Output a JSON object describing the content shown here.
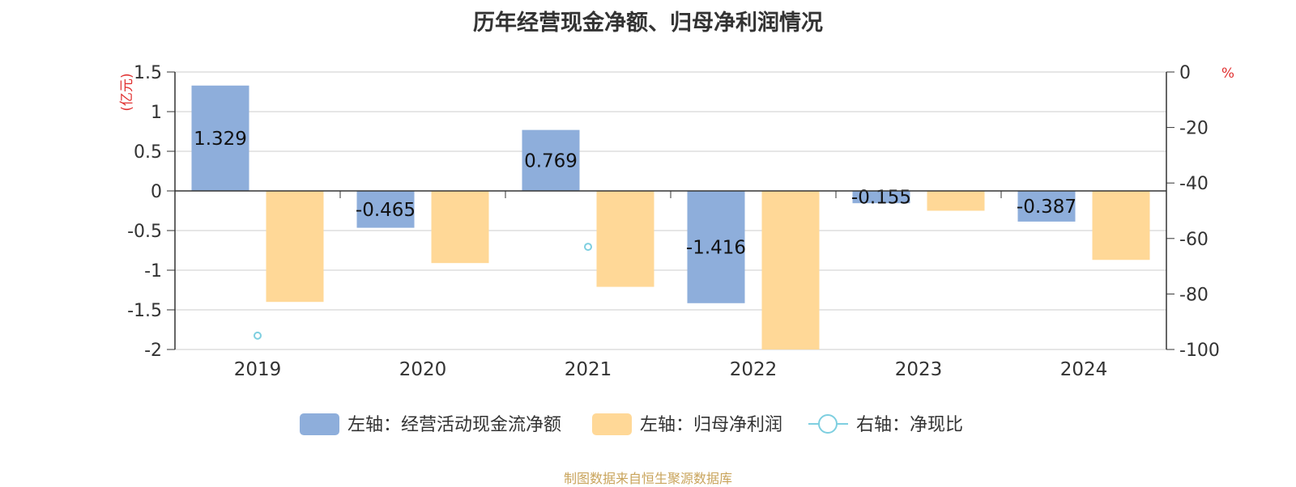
{
  "chart_data": {
    "type": "bar",
    "title": "历年经营现金净额、归母净利润情况",
    "categories": [
      "2019",
      "2020",
      "2021",
      "2022",
      "2023",
      "2024"
    ],
    "left_axis": {
      "unit_label": "(亿元)",
      "ylim": [
        -2,
        1.5
      ],
      "ticks": [
        1.5,
        1,
        0.5,
        0,
        -0.5,
        -1,
        -1.5,
        -2
      ]
    },
    "right_axis": {
      "unit_label": "%",
      "ylim": [
        -100,
        0
      ],
      "ticks": [
        0,
        -20,
        -40,
        -60,
        -80,
        -100
      ]
    },
    "series": [
      {
        "name": "左轴：经营活动现金流净额",
        "type": "bar",
        "axis": "left",
        "color": "#8eaedb",
        "values": [
          1.329,
          -0.465,
          0.769,
          -1.416,
          -0.155,
          -0.387
        ],
        "labels": [
          "1.329",
          "-0.465",
          "0.769",
          "-1.416",
          "-0.155",
          "-0.387"
        ]
      },
      {
        "name": "左轴：归母净利润",
        "type": "bar",
        "axis": "left",
        "color": "#ffd897",
        "values": [
          -1.4,
          -0.91,
          -1.21,
          -2.0,
          -0.25,
          -0.87
        ]
      },
      {
        "name": "右轴：净现比",
        "type": "scatter",
        "axis": "right",
        "color": "#7ecfe0",
        "values": [
          -95,
          null,
          -63,
          null,
          null,
          null
        ]
      }
    ],
    "grid": true,
    "legend_position": "bottom",
    "axis_label_color": "#e03030"
  },
  "source": {
    "text": "制图数据来自恒生聚源数据库",
    "color": "#c9a45c"
  }
}
